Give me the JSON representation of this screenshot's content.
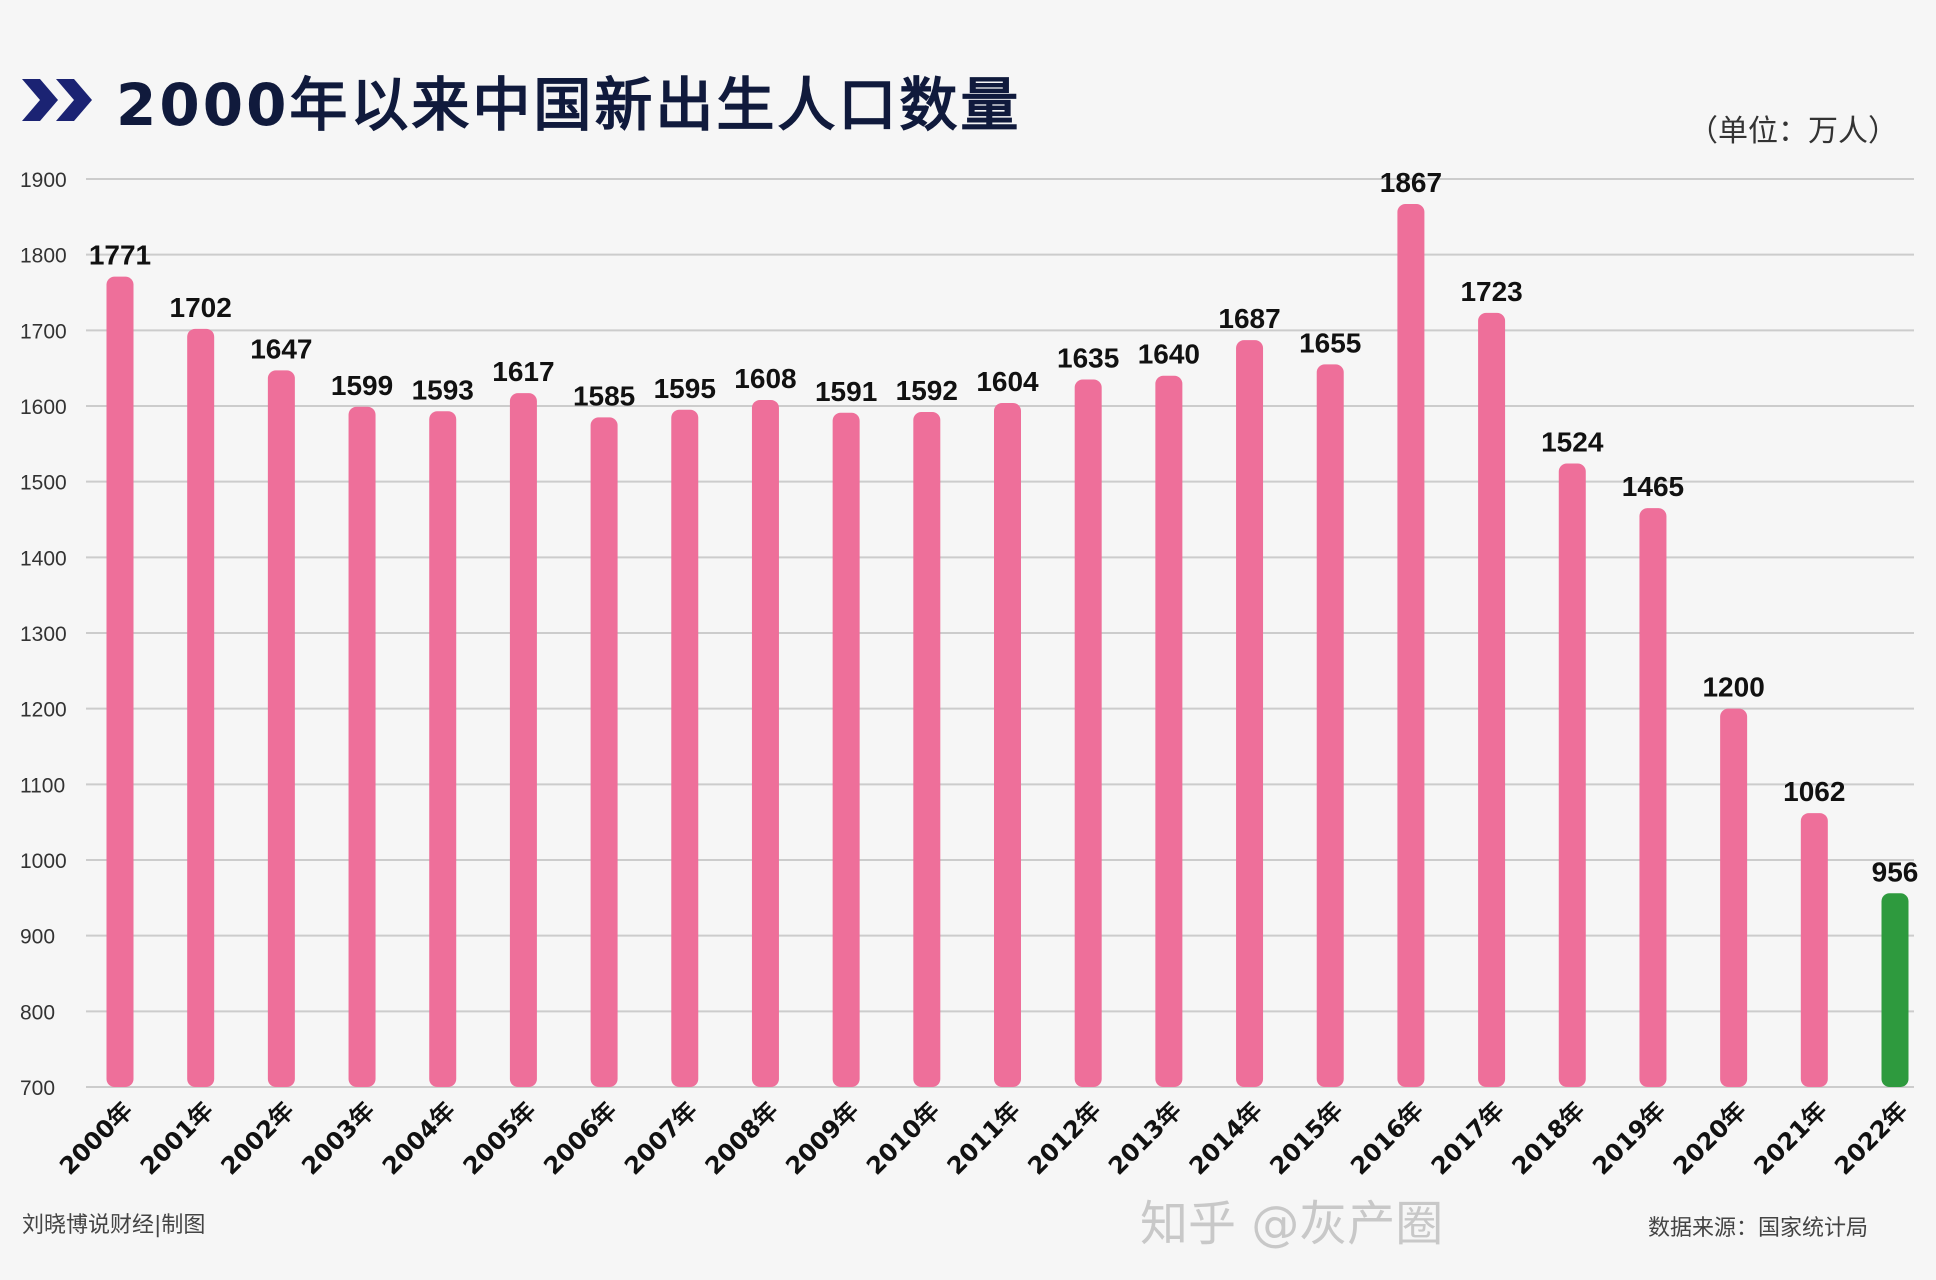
{
  "chart_data": {
    "type": "bar",
    "title": "2000年以来中国新出生人口数量",
    "unit_label": "（单位：万人）",
    "categories": [
      "2000年",
      "2001年",
      "2002年",
      "2003年",
      "2004年",
      "2005年",
      "2006年",
      "2007年",
      "2008年",
      "2009年",
      "2010年",
      "2011年",
      "2012年",
      "2013年",
      "2014年",
      "2015年",
      "2016年",
      "2017年",
      "2018年",
      "2019年",
      "2020年",
      "2021年",
      "2022年"
    ],
    "values": [
      1771,
      1702,
      1647,
      1599,
      1593,
      1617,
      1585,
      1595,
      1608,
      1591,
      1592,
      1604,
      1635,
      1640,
      1687,
      1655,
      1867,
      1723,
      1524,
      1465,
      1200,
      1062,
      956
    ],
    "ylim": [
      700,
      1900
    ],
    "yticks": [
      700,
      800,
      900,
      1000,
      1100,
      1200,
      1300,
      1400,
      1500,
      1600,
      1700,
      1800,
      1900
    ],
    "grid": true,
    "colors": {
      "bar": "#ee6f9a",
      "highlight_bar": "#2e9a3e",
      "title": "#101a3c",
      "grid": "#cccccc"
    },
    "highlight_index": 22
  },
  "footer": {
    "credit": "刘晓博说财经|制图",
    "source": "数据来源：国家统计局",
    "watermark": "知乎 @灰产圈"
  },
  "icons": {
    "title_marker": "double-chevron-right-icon"
  }
}
